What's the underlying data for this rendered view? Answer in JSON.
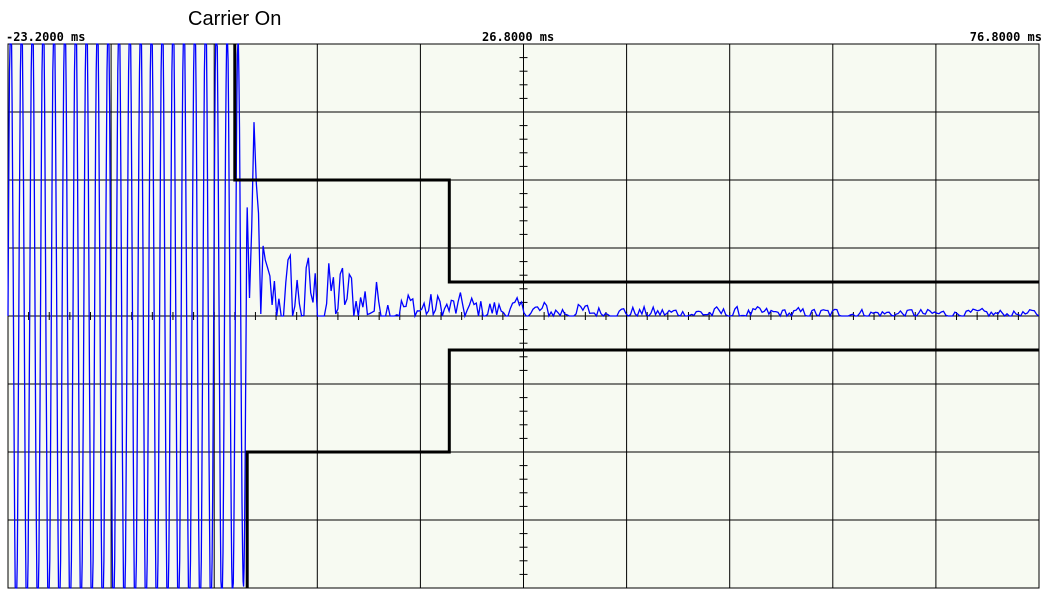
{
  "chart_data": {
    "type": "line",
    "title": "Carrier On",
    "x_tick_labels": [
      "-23.2000 ms",
      "26.8000 ms",
      "76.8000 ms"
    ],
    "xlim": [
      -23.2,
      76.8
    ],
    "x_unit": "ms",
    "grid": true,
    "grid_divisions": {
      "x": 10,
      "y": 8
    },
    "ylim": [
      -4,
      4
    ],
    "mask_upper": {
      "x": [
        -1.2,
        -1.2,
        19.6,
        19.6,
        76.8
      ],
      "y": [
        4,
        2,
        2,
        0.5,
        0.5
      ]
    },
    "mask_lower": {
      "x": [
        0.0,
        0.0,
        19.6,
        19.6,
        76.8
      ],
      "y": [
        -4,
        -2,
        -2,
        -0.5,
        -0.5
      ]
    },
    "signal_envelope": {
      "x": [
        -23.2,
        -3.0,
        0.0,
        2.0,
        4.0,
        10.0,
        15.0,
        19.6,
        26.8,
        40.0,
        76.8
      ],
      "amplitude": [
        4.0,
        4.0,
        3.4,
        0.6,
        0.85,
        0.7,
        0.35,
        0.3,
        0.2,
        0.12,
        0.08
      ]
    },
    "series": [
      {
        "color": "#0000ff"
      }
    ],
    "mask_color": "#000000"
  }
}
